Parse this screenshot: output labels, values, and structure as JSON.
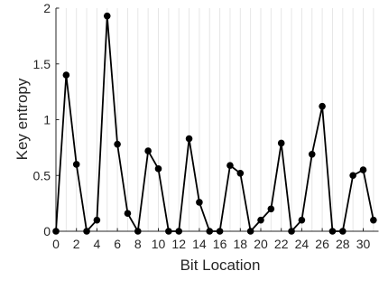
{
  "chart_data": {
    "type": "line",
    "title": "",
    "xlabel": "Bit Location",
    "ylabel": "Key entropy",
    "xlim": [
      0,
      31
    ],
    "ylim": [
      0,
      2
    ],
    "grid": "vertical",
    "legend": "none",
    "x_ticks": [
      "0",
      "2",
      "4",
      "6",
      "8",
      "10",
      "12",
      "14",
      "16",
      "18",
      "20",
      "22",
      "24",
      "26",
      "28",
      "30"
    ],
    "y_ticks": [
      "0",
      "0.5",
      "1",
      "1.5",
      "2"
    ],
    "series": [
      {
        "color": "#000000",
        "marker": "circle",
        "x": [
          0,
          1,
          2,
          3,
          4,
          5,
          6,
          7,
          8,
          9,
          10,
          11,
          12,
          13,
          14,
          15,
          16,
          17,
          18,
          19,
          20,
          21,
          22,
          23,
          24,
          25,
          26,
          27,
          28,
          29,
          30,
          31
        ],
        "y": [
          0,
          1.4,
          0.6,
          0,
          0.1,
          1.93,
          0.78,
          0.16,
          0,
          0.72,
          0.56,
          0,
          0,
          0.83,
          0.26,
          0,
          0,
          0.59,
          0.52,
          0,
          0.1,
          0.2,
          0.79,
          0,
          0.1,
          0.69,
          1.12,
          0,
          0,
          0.5,
          0.55,
          0.1
        ]
      }
    ]
  }
}
